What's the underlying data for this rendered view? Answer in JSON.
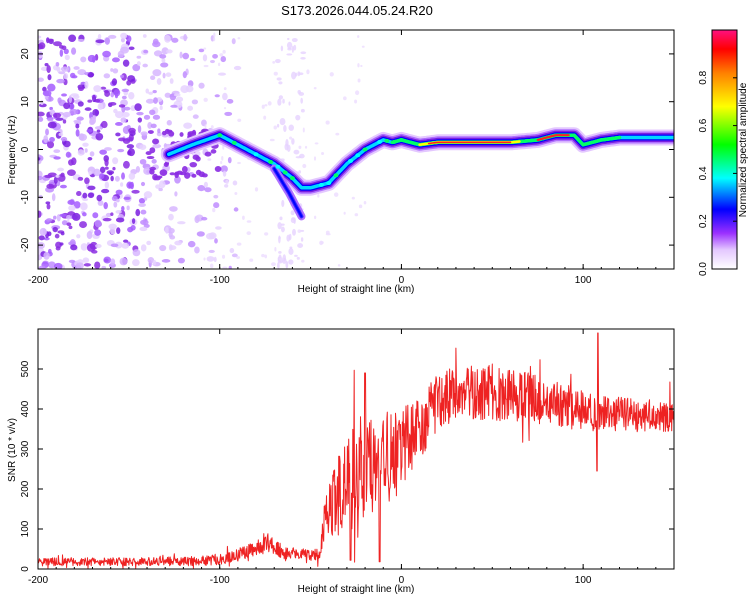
{
  "title": "S173.2026.044.05.24.R20",
  "chart_data": [
    {
      "type": "heatmap",
      "xlabel": "Height of straight line (km)",
      "ylabel": "Frequency (Hz)",
      "xlim": [
        -200,
        150
      ],
      "ylim": [
        -25,
        25
      ],
      "xticks": [
        -200,
        -100,
        0,
        100
      ],
      "yticks": [
        -20,
        -10,
        0,
        10,
        20
      ],
      "colorbar": {
        "label": "Normalized spectral amplitude",
        "range": [
          0,
          1
        ],
        "ticks": [
          "0.0",
          "0.2",
          "0.4",
          "0.6",
          "0.8"
        ],
        "colors": [
          "#ffffff",
          "#e8c8ff",
          "#9b30ff",
          "#0000ff",
          "#00ffff",
          "#00ff00",
          "#ffff00",
          "#ff8000",
          "#ff0000",
          "#ff1080"
        ]
      },
      "ridge": {
        "x": [
          -128,
          -115,
          -100,
          -90,
          -80,
          -70,
          -60,
          -55,
          -50,
          -40,
          -30,
          -20,
          -10,
          -5,
          0,
          10,
          20,
          40,
          60,
          75,
          85,
          95,
          100,
          110,
          120,
          150
        ],
        "y": [
          -1,
          1,
          3,
          1,
          -1,
          -3,
          -6,
          -8,
          -8,
          -7,
          -3,
          0,
          2,
          1.5,
          2,
          1,
          1.5,
          1.5,
          1.5,
          2,
          3,
          3,
          1,
          2,
          2.5,
          2.5
        ]
      },
      "branch": {
        "x": [
          -70,
          -62,
          -55
        ],
        "y": [
          -4,
          -9,
          -14
        ]
      },
      "noise_region": {
        "xmin": -200,
        "xmax": -110,
        "ymin": -25,
        "ymax": 24
      }
    },
    {
      "type": "line",
      "xlabel": "Height of straight line (km)",
      "ylabel": "SNR (10 * v/v)",
      "xlim": [
        -200,
        150
      ],
      "ylim": [
        0,
        600
      ],
      "xticks": [
        -200,
        -100,
        0,
        100
      ],
      "yticks": [
        0,
        100,
        200,
        300,
        400,
        500
      ],
      "series": [
        {
          "name": "SNR",
          "color": "#ee2222",
          "envelope": {
            "x": [
              -200,
              -150,
              -110,
              -95,
              -80,
              -75,
              -65,
              -45,
              -42,
              -40,
              -35,
              -30,
              -25,
              -20,
              -10,
              0,
              10,
              20,
              30,
              50,
              80,
              100,
              110,
              150
            ],
            "mean": [
              18,
              18,
              20,
              28,
              50,
              70,
              40,
              35,
              140,
              160,
              180,
              200,
              240,
              260,
              280,
              300,
              350,
              420,
              440,
              440,
              420,
              395,
              390,
              380
            ],
            "spread": [
              10,
              10,
              12,
              15,
              20,
              25,
              15,
              15,
              60,
              80,
              100,
              120,
              130,
              140,
              120,
              110,
              80,
              70,
              70,
              70,
              60,
              50,
              45,
              40
            ]
          }
        }
      ]
    }
  ]
}
